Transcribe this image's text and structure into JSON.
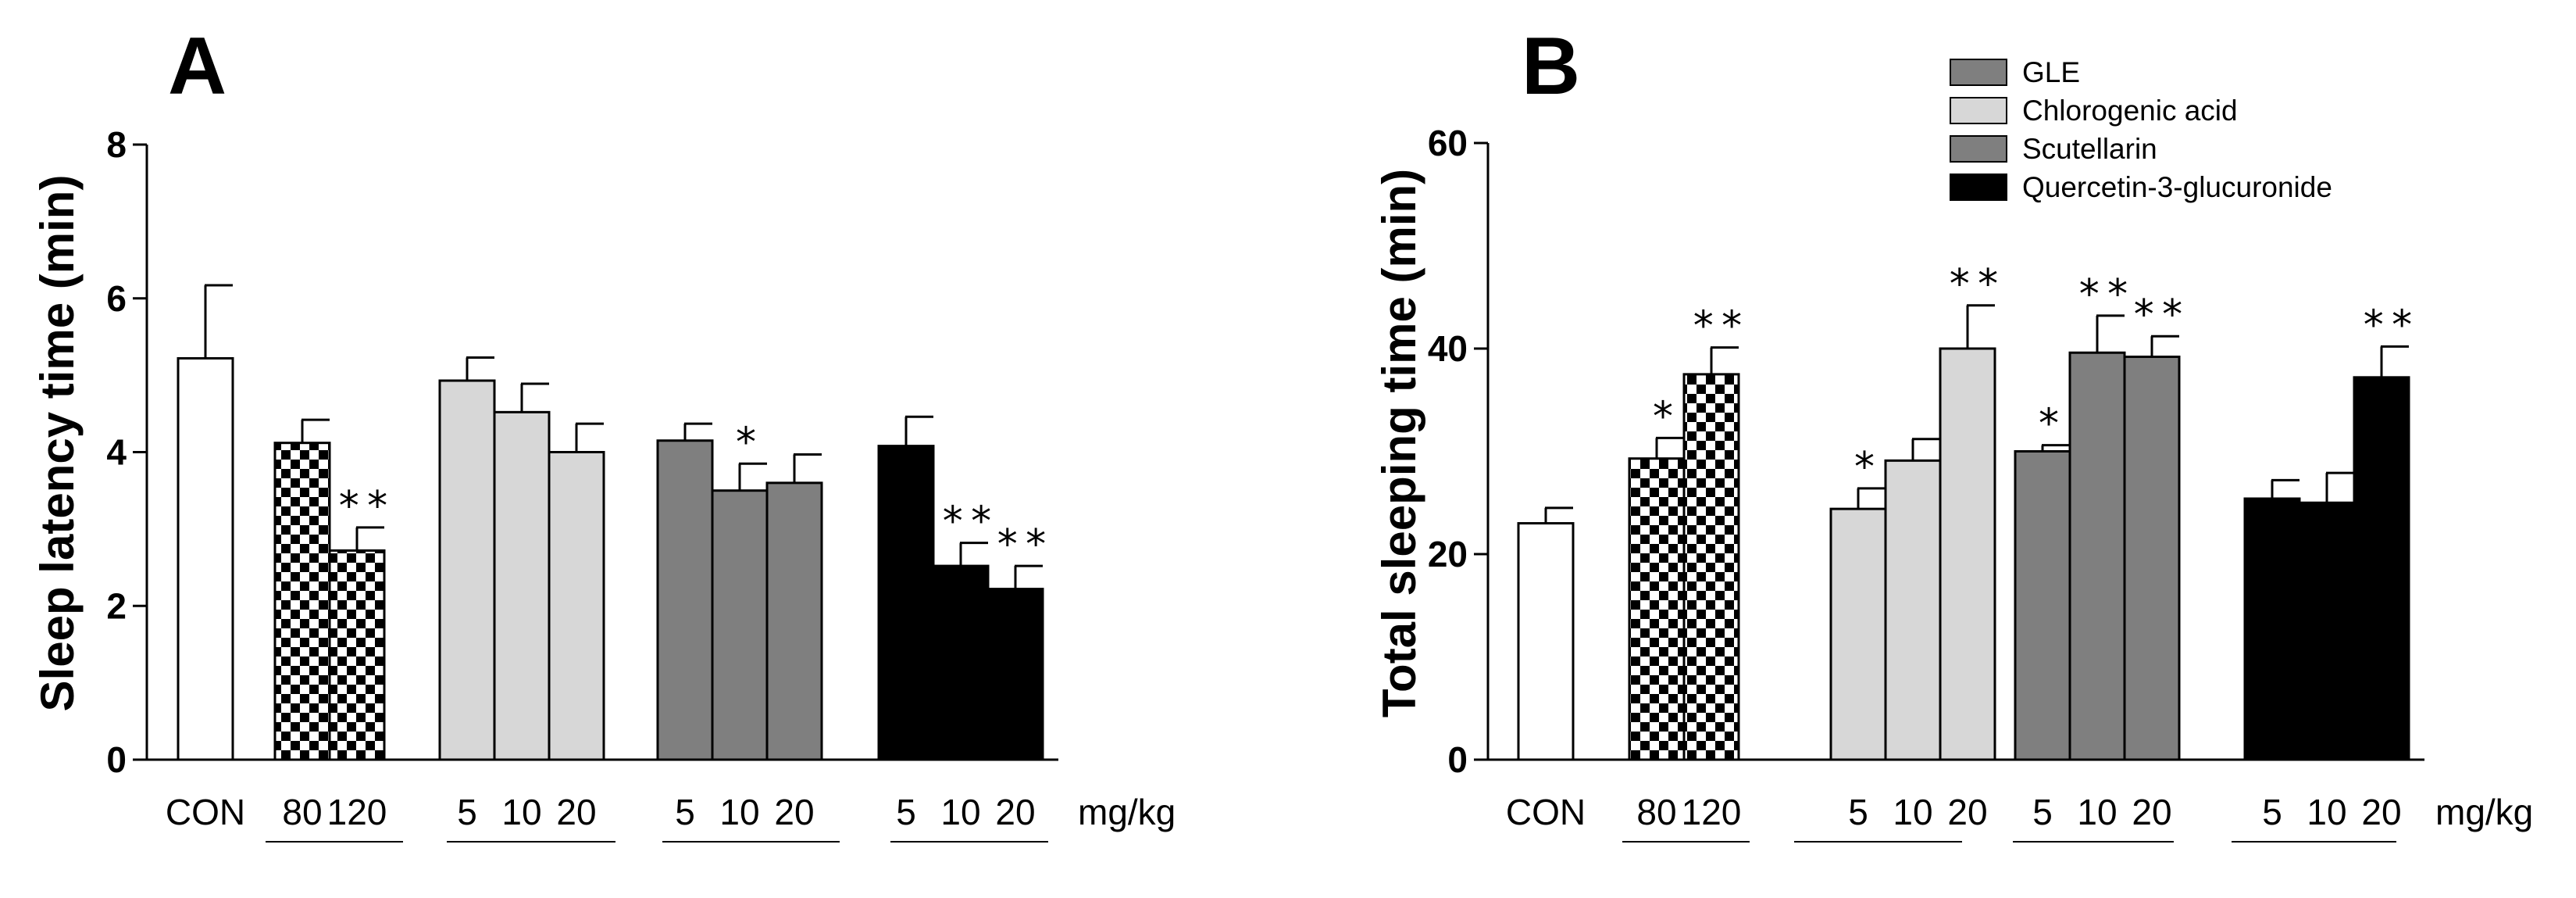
{
  "colors": {
    "GLE": "#7f7f7f",
    "Chlorogenic acid": "#d7d7d7",
    "Scutellarin": "#7f7f7f",
    "Quercetin-3-glucuronide": "#000000",
    "CON": "#ffffff"
  },
  "legend": {
    "items": [
      {
        "label": "GLE",
        "color": "#7f7f7f"
      },
      {
        "label": "Chlorogenic acid",
        "color": "#d7d7d7"
      },
      {
        "label": "Scutellarin",
        "color": "#7f7f7f"
      },
      {
        "label": "Quercetin-3-glucuronide",
        "color": "#000000"
      }
    ]
  },
  "chart_data": [
    {
      "type": "bar",
      "panel": "A",
      "ylabel": "Sleep latency time (min)",
      "xlabel": "",
      "ylim": [
        0,
        8
      ],
      "yticks": [
        0,
        2,
        4,
        6,
        8
      ],
      "unit_label": "mg/kg",
      "groups": [
        {
          "name": "CON",
          "pattern": "none",
          "color": "#ffffff",
          "doses": [
            "CON"
          ],
          "values": [
            5.22
          ],
          "errors": [
            0.95
          ],
          "stars": [
            ""
          ]
        },
        {
          "name": "GLE",
          "pattern": "checker",
          "color": "#7f7f7f",
          "doses": [
            "80",
            "120"
          ],
          "values": [
            4.12,
            2.72
          ],
          "errors": [
            0.3,
            0.3
          ],
          "stars": [
            "",
            "**"
          ]
        },
        {
          "name": "Chlorogenic acid",
          "pattern": "none",
          "color": "#d7d7d7",
          "doses": [
            "5",
            "10",
            "20"
          ],
          "values": [
            4.93,
            4.52,
            4.0
          ],
          "errors": [
            0.3,
            0.37,
            0.37
          ],
          "stars": [
            "",
            "",
            ""
          ]
        },
        {
          "name": "Scutellarin",
          "pattern": "none",
          "color": "#7f7f7f",
          "doses": [
            "5",
            "10",
            "20"
          ],
          "values": [
            4.15,
            3.5,
            3.6
          ],
          "errors": [
            0.22,
            0.35,
            0.37
          ],
          "stars": [
            "",
            "*",
            ""
          ]
        },
        {
          "name": "Quercetin-3-glucuronide",
          "pattern": "none",
          "color": "#000000",
          "doses": [
            "5",
            "10",
            "20"
          ],
          "values": [
            4.08,
            2.52,
            2.22
          ],
          "errors": [
            0.38,
            0.3,
            0.3
          ],
          "stars": [
            "",
            "**",
            "**"
          ]
        }
      ]
    },
    {
      "type": "bar",
      "panel": "B",
      "ylabel": "Total sleeping time (min)",
      "xlabel": "",
      "ylim": [
        0,
        60
      ],
      "yticks": [
        0,
        20,
        40,
        60
      ],
      "unit_label": "mg/kg",
      "groups": [
        {
          "name": "CON",
          "pattern": "none",
          "color": "#ffffff",
          "doses": [
            "CON"
          ],
          "values": [
            23.0
          ],
          "errors": [
            1.5
          ],
          "stars": [
            ""
          ]
        },
        {
          "name": "GLE",
          "pattern": "checker",
          "color": "#7f7f7f",
          "doses": [
            "80",
            "120"
          ],
          "values": [
            29.3,
            37.5
          ],
          "errors": [
            2.0,
            2.6
          ],
          "stars": [
            "*",
            "**"
          ]
        },
        {
          "name": "Chlorogenic acid",
          "pattern": "none",
          "color": "#d7d7d7",
          "doses": [
            "5",
            "10",
            "20"
          ],
          "values": [
            24.4,
            29.1,
            40.0
          ],
          "errors": [
            2.0,
            2.1,
            4.2
          ],
          "stars": [
            "*",
            "",
            "**"
          ]
        },
        {
          "name": "Scutellarin",
          "pattern": "none",
          "color": "#7f7f7f",
          "doses": [
            "5",
            "10",
            "20"
          ],
          "values": [
            30.0,
            39.6,
            39.2
          ],
          "errors": [
            0.6,
            3.6,
            2.0
          ],
          "stars": [
            "*",
            "**",
            "**"
          ]
        },
        {
          "name": "Quercetin-3-glucuronide",
          "pattern": "none",
          "color": "#000000",
          "doses": [
            "5",
            "10",
            "20"
          ],
          "values": [
            25.4,
            25.0,
            37.2
          ],
          "errors": [
            1.8,
            2.9,
            3.0
          ],
          "stars": [
            "",
            "",
            "**"
          ]
        }
      ]
    }
  ]
}
